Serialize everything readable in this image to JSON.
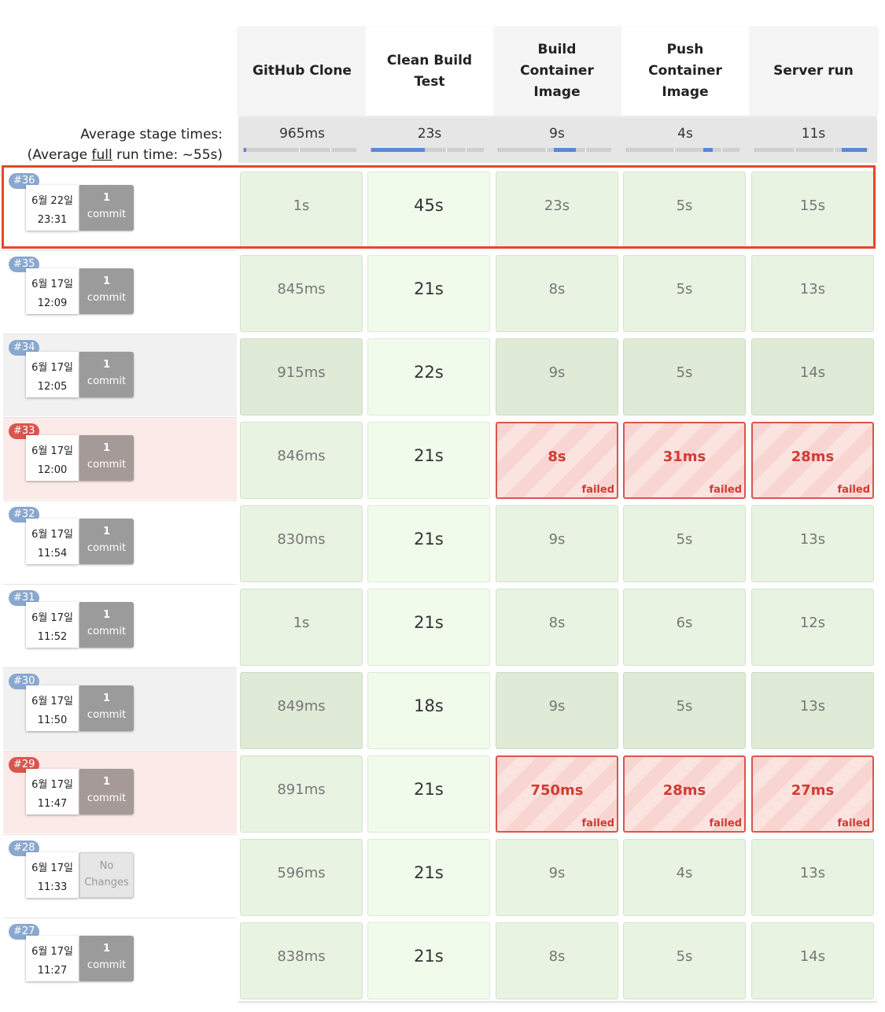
{
  "stages": [
    "GitHub Clone",
    "Clean Build Test",
    "Build Container Image",
    "Push Container Image",
    "Server run"
  ],
  "avg_label_line1": "Average stage times:",
  "avg_label_prefix": "(Average ",
  "avg_label_full": "full",
  "avg_label_suffix": " run time: ~55s)",
  "avg_times": [
    "965ms",
    "23s",
    "9s",
    "4s",
    "11s"
  ],
  "failed_label": "failed",
  "runs": [
    {
      "id": "#36",
      "status": "success",
      "date": "6월 22일",
      "time": "23:31",
      "commit_count": "1",
      "commit_word": "commit",
      "cells": [
        "1s",
        "45s",
        "23s",
        "5s",
        "15s"
      ],
      "failed": [
        false,
        false,
        false,
        false,
        false
      ]
    },
    {
      "id": "#35",
      "status": "success",
      "date": "6월 17일",
      "time": "12:09",
      "commit_count": "1",
      "commit_word": "commit",
      "cells": [
        "845ms",
        "21s",
        "8s",
        "5s",
        "13s"
      ],
      "failed": [
        false,
        false,
        false,
        false,
        false
      ]
    },
    {
      "id": "#34",
      "status": "success",
      "date": "6월 17일",
      "time": "12:05",
      "commit_count": "1",
      "commit_word": "commit",
      "cells": [
        "915ms",
        "22s",
        "9s",
        "5s",
        "14s"
      ],
      "failed": [
        false,
        false,
        false,
        false,
        false
      ]
    },
    {
      "id": "#33",
      "status": "failed",
      "date": "6월 17일",
      "time": "12:00",
      "commit_count": "1",
      "commit_word": "commit",
      "cells": [
        "846ms",
        "21s",
        "8s",
        "31ms",
        "28ms"
      ],
      "failed": [
        false,
        false,
        true,
        true,
        true
      ]
    },
    {
      "id": "#32",
      "status": "success",
      "date": "6월 17일",
      "time": "11:54",
      "commit_count": "1",
      "commit_word": "commit",
      "cells": [
        "830ms",
        "21s",
        "9s",
        "5s",
        "13s"
      ],
      "failed": [
        false,
        false,
        false,
        false,
        false
      ]
    },
    {
      "id": "#31",
      "status": "success",
      "date": "6월 17일",
      "time": "11:52",
      "commit_count": "1",
      "commit_word": "commit",
      "cells": [
        "1s",
        "21s",
        "8s",
        "6s",
        "12s"
      ],
      "failed": [
        false,
        false,
        false,
        false,
        false
      ]
    },
    {
      "id": "#30",
      "status": "success",
      "date": "6월 17일",
      "time": "11:50",
      "commit_count": "1",
      "commit_word": "commit",
      "cells": [
        "849ms",
        "18s",
        "9s",
        "5s",
        "13s"
      ],
      "failed": [
        false,
        false,
        false,
        false,
        false
      ]
    },
    {
      "id": "#29",
      "status": "failed",
      "date": "6월 17일",
      "time": "11:47",
      "commit_count": "1",
      "commit_word": "commit",
      "cells": [
        "891ms",
        "21s",
        "750ms",
        "28ms",
        "27ms"
      ],
      "failed": [
        false,
        false,
        true,
        true,
        true
      ]
    },
    {
      "id": "#28",
      "status": "success",
      "date": "6월 17일",
      "time": "11:33",
      "commit_count": "No",
      "commit_word": "Changes",
      "cells": [
        "596ms",
        "21s",
        "9s",
        "4s",
        "13s"
      ],
      "failed": [
        false,
        false,
        false,
        false,
        false
      ]
    },
    {
      "id": "#27",
      "status": "success",
      "date": "6월 17일",
      "time": "11:27",
      "commit_count": "1",
      "commit_word": "commit",
      "cells": [
        "838ms",
        "21s",
        "8s",
        "5s",
        "14s"
      ],
      "failed": [
        false,
        false,
        false,
        false,
        false
      ]
    }
  ],
  "colors": {
    "accent_blue": "#5b87d8",
    "failed_red": "#d9564d",
    "success_green": "#e8f3e2",
    "selection_outline": "#e8462a"
  }
}
